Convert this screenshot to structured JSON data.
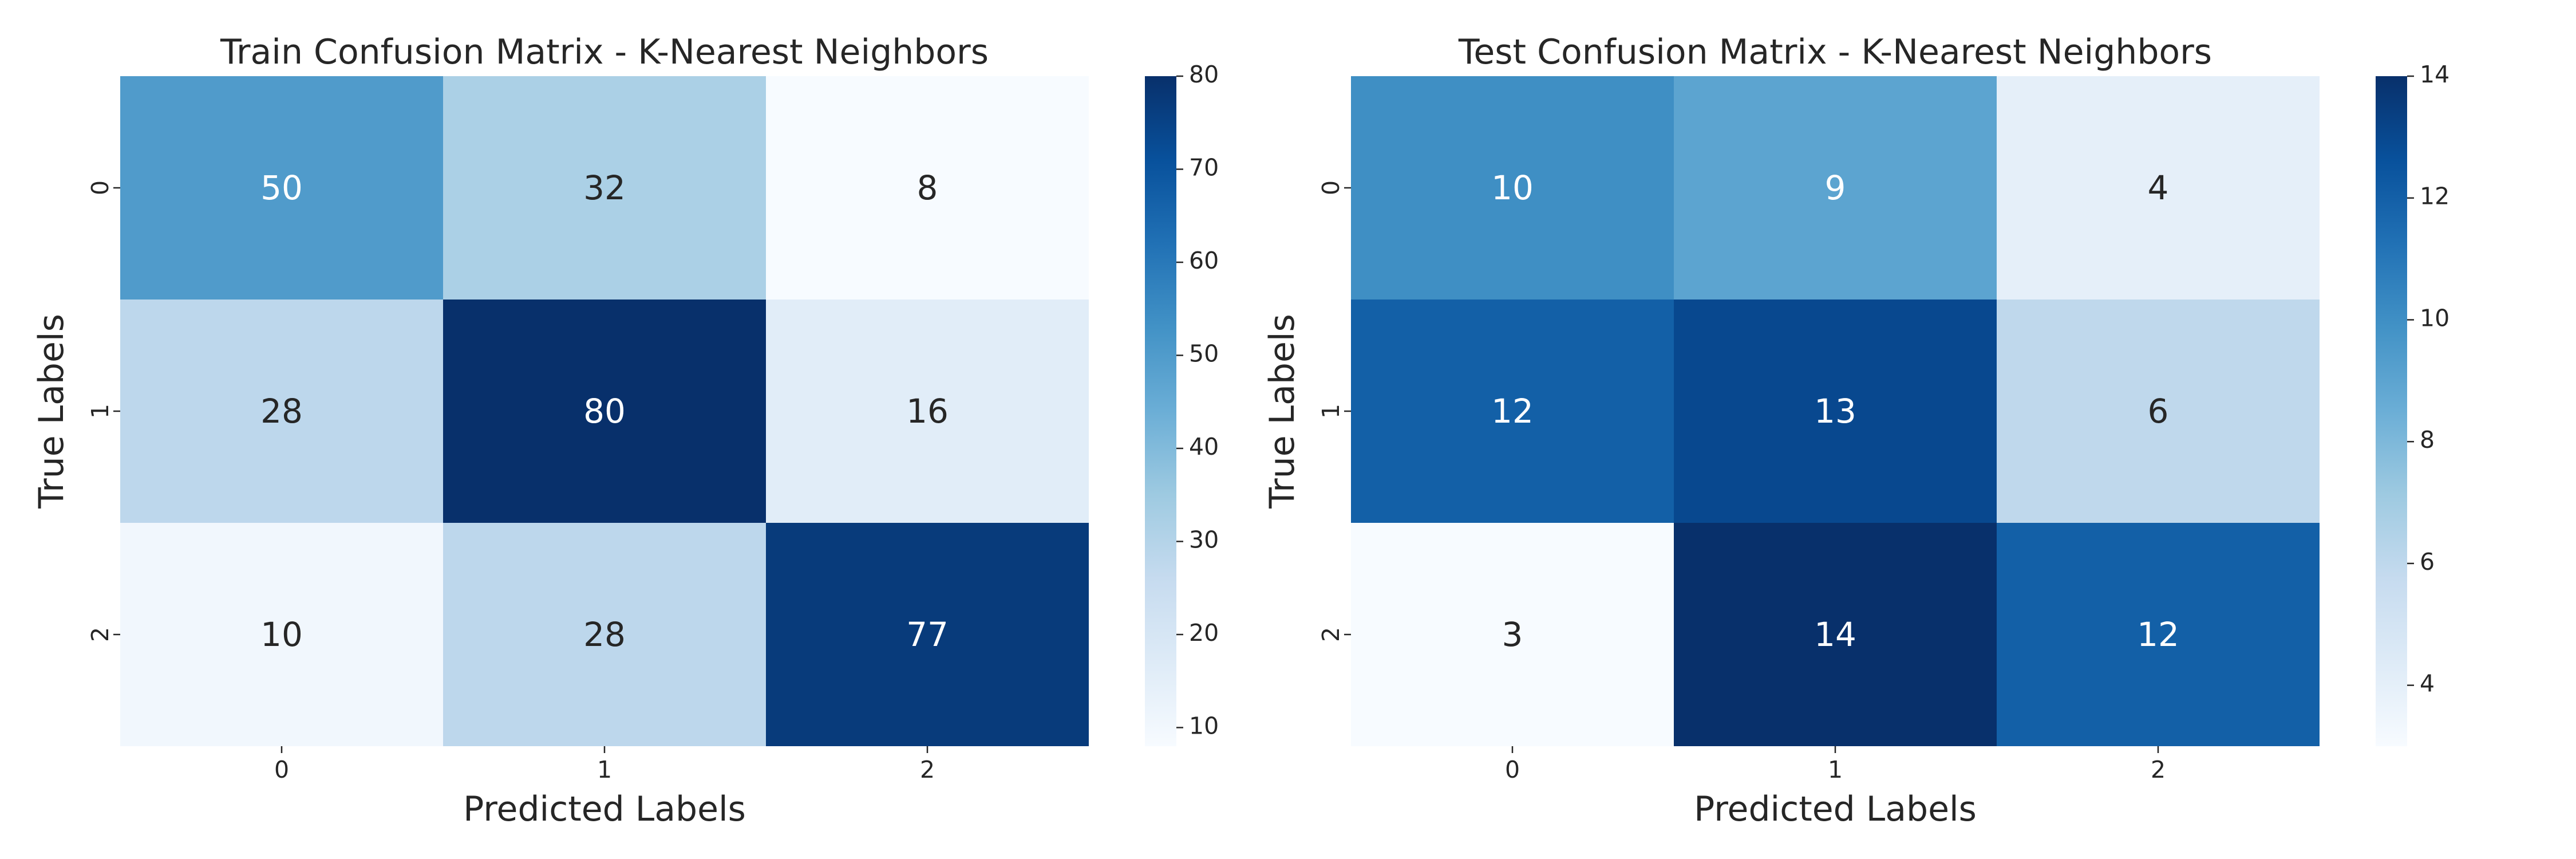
{
  "chart_data": [
    {
      "type": "heatmap",
      "title": "Train Confusion Matrix - K-Nearest Neighbors",
      "xlabel": "Predicted Labels",
      "ylabel": "True Labels",
      "x_categories": [
        "0",
        "1",
        "2"
      ],
      "y_categories": [
        "0",
        "1",
        "2"
      ],
      "values": [
        [
          50,
          32,
          8
        ],
        [
          28,
          80,
          16
        ],
        [
          10,
          28,
          77
        ]
      ],
      "colormap": "Blues",
      "colorbar": {
        "min": 8,
        "max": 80,
        "ticks": [
          10,
          20,
          30,
          40,
          50,
          60,
          70,
          80
        ]
      }
    },
    {
      "type": "heatmap",
      "title": "Test Confusion Matrix - K-Nearest Neighbors",
      "xlabel": "Predicted Labels",
      "ylabel": "True Labels",
      "x_categories": [
        "0",
        "1",
        "2"
      ],
      "y_categories": [
        "0",
        "1",
        "2"
      ],
      "values": [
        [
          10,
          9,
          4
        ],
        [
          12,
          13,
          6
        ],
        [
          3,
          14,
          12
        ]
      ],
      "colormap": "Blues",
      "colorbar": {
        "min": 3,
        "max": 14,
        "ticks": [
          4,
          6,
          8,
          10,
          12,
          14
        ]
      }
    }
  ]
}
